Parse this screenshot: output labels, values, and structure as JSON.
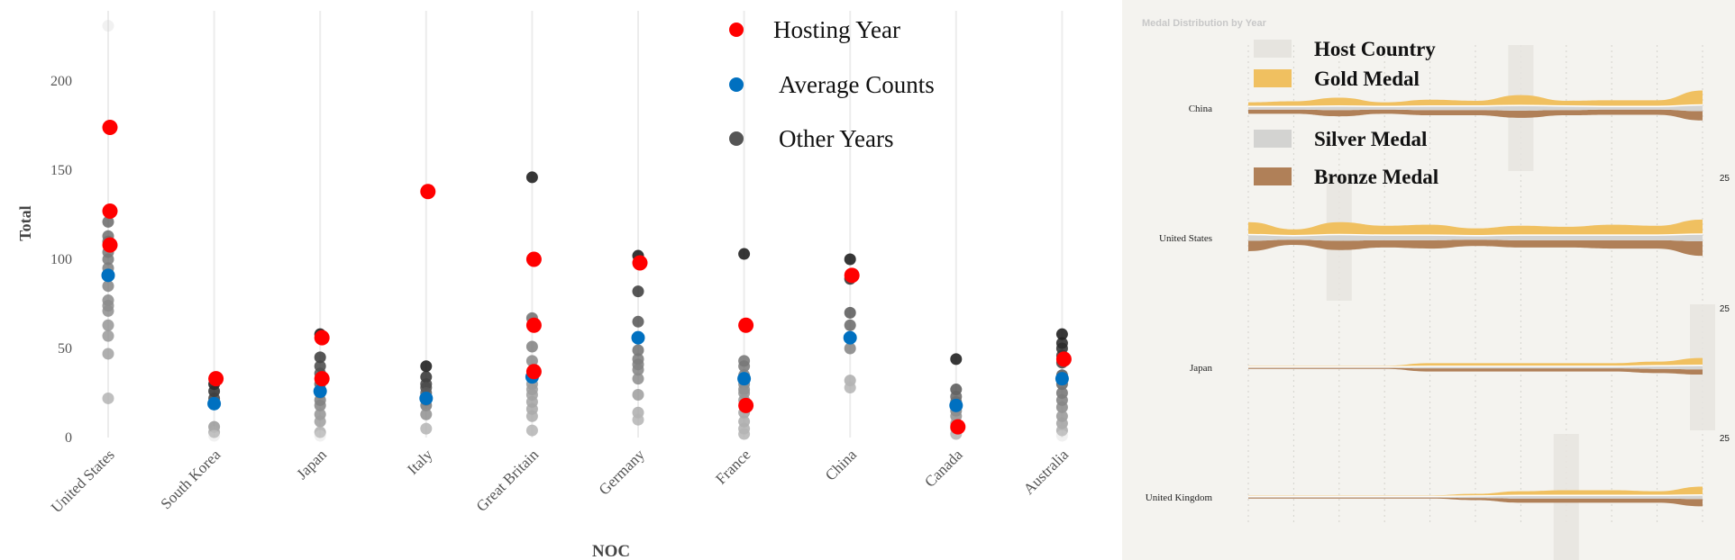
{
  "chart_data": [
    {
      "type": "scatter",
      "title": "",
      "xlabel": "NOC",
      "ylabel": "Total",
      "ylim": [
        0,
        235
      ],
      "yticks": [
        0,
        50,
        100,
        150,
        200
      ],
      "categories": [
        "United States",
        "South Korea",
        "Japan",
        "Italy",
        "Great Britain",
        "Germany",
        "France",
        "China",
        "Canada",
        "Australia"
      ],
      "legend": {
        "placement": "top-center",
        "entries": [
          {
            "label": "Hosting Year",
            "color": "#ff0000"
          },
          {
            "label": "Average Counts",
            "color": "#0070c0"
          },
          {
            "label": "Other Years",
            "color": "#555555"
          }
        ]
      },
      "series": [
        {
          "name": "Hosting Year",
          "color": "#ff0000",
          "values": [
            [
              174,
              127,
              108
            ],
            [
              33
            ],
            [
              56,
              33
            ],
            [
              138
            ],
            [
              100,
              63,
              37
            ],
            [
              98
            ],
            [
              63,
              18
            ],
            [
              91
            ],
            [
              6
            ],
            [
              44
            ]
          ]
        },
        {
          "name": "Average Counts",
          "color": "#0070c0",
          "values": [
            [
              91
            ],
            [
              19
            ],
            [
              26
            ],
            [
              22
            ],
            [
              34
            ],
            [
              56
            ],
            [
              33
            ],
            [
              56
            ],
            [
              18
            ],
            [
              33
            ]
          ]
        },
        {
          "name": "Other Years",
          "color": "#555555",
          "values": [
            [
              231,
              121,
              113,
              110,
              104,
              100,
              95,
              85,
              77,
              74,
              71,
              63,
              57,
              47,
              22
            ],
            [
              30,
              26,
              22,
              6,
              3,
              1
            ],
            [
              58,
              45,
              40,
              36,
              30,
              25,
              21,
              18,
              13,
              9,
              3,
              1
            ],
            [
              40,
              34,
              30,
              28,
              25,
              21,
              18,
              13,
              5
            ],
            [
              146,
              67,
              51,
              43,
              35,
              30,
              27,
              24,
              20,
              16,
              12,
              4
            ],
            [
              102,
              82,
              65,
              49,
              44,
              41,
              38,
              33,
              24,
              14,
              10
            ],
            [
              103,
              43,
              40,
              35,
              30,
              27,
              25,
              21,
              14,
              9,
              5,
              2
            ],
            [
              100,
              89,
              70,
              63,
              50,
              32,
              28
            ],
            [
              44,
              27,
              23,
              20,
              15,
              12,
              8,
              5,
              2
            ],
            [
              58,
              53,
              50,
              46,
              42,
              35,
              30,
              25,
              21,
              17,
              12,
              8,
              4,
              1
            ]
          ]
        }
      ]
    },
    {
      "type": "area",
      "title": "Medal Distribution by Year",
      "categories": [
        "China",
        "United States",
        "Japan",
        "United Kingdom"
      ],
      "scale_label": "25",
      "legend": {
        "placement": "top-left",
        "entries": [
          {
            "label": "Host Country",
            "color": "#e6e4df"
          },
          {
            "label": "Gold Medal",
            "color": "#f0c060"
          },
          {
            "label": "Silver Medal",
            "color": "#d3d3d1"
          },
          {
            "label": "Bronze Medal",
            "color": "#b08058"
          }
        ]
      },
      "series": [
        {
          "name": "China",
          "host_period": 6,
          "gold": [
            4,
            5,
            8,
            4,
            6,
            5,
            10,
            5,
            6,
            6,
            14
          ],
          "silver": [
            3,
            3,
            4,
            3,
            4,
            4,
            5,
            4,
            3,
            3,
            6
          ],
          "bronze": [
            4,
            4,
            6,
            4,
            5,
            5,
            7,
            5,
            5,
            5,
            9
          ]
        },
        {
          "name": "United States",
          "host_period": 2,
          "gold": [
            12,
            6,
            12,
            9,
            10,
            7,
            9,
            8,
            10,
            9,
            14
          ],
          "silver": [
            6,
            4,
            6,
            5,
            5,
            4,
            5,
            5,
            5,
            5,
            7
          ],
          "bronze": [
            10,
            5,
            9,
            7,
            8,
            6,
            7,
            7,
            8,
            8,
            14
          ]
        },
        {
          "name": "Japan",
          "host_period": 10,
          "gold": [
            1,
            1,
            1,
            1,
            3,
            3,
            3,
            3,
            3,
            4,
            7
          ],
          "silver": [
            1,
            1,
            1,
            1,
            2,
            2,
            2,
            2,
            2,
            3,
            4
          ],
          "bronze": [
            1,
            1,
            1,
            1,
            3,
            3,
            3,
            3,
            3,
            4,
            5
          ]
        },
        {
          "name": "United Kingdom",
          "host_period": 7,
          "gold": [
            1,
            1,
            1,
            1,
            1,
            2,
            4,
            5,
            5,
            4,
            8
          ],
          "silver": [
            1,
            1,
            1,
            1,
            1,
            2,
            3,
            3,
            3,
            3,
            4
          ],
          "bronze": [
            1,
            1,
            1,
            1,
            1,
            2,
            4,
            4,
            4,
            4,
            7
          ]
        }
      ]
    }
  ]
}
